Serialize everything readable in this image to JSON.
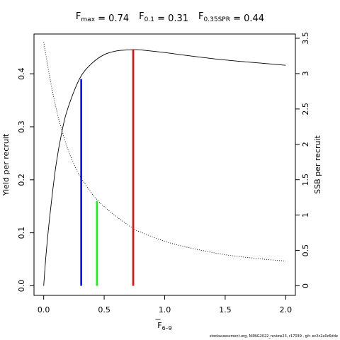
{
  "chart_data": {
    "type": "line",
    "title": {
      "parts": [
        {
          "base": "F",
          "sub": "max",
          "eq": " = 0.74"
        },
        {
          "base": "F",
          "sub": "0.1",
          "eq": " = 0.31"
        },
        {
          "base": "F",
          "sub": "0.35SPR",
          "eq": " = 0.44"
        }
      ]
    },
    "xlabel": {
      "base": "F",
      "sub": "6–9",
      "overbar": true
    },
    "ylabel_left": "Yield per recruit",
    "ylabel_right": "SSB per recruit",
    "xlim": [
      -0.08,
      2.08
    ],
    "ylim_left": [
      -0.018,
      0.475
    ],
    "ylim_right": [
      -0.135,
      3.56
    ],
    "x_ticks": [
      0.0,
      0.5,
      1.0,
      1.5,
      2.0
    ],
    "x_tick_labels": [
      "0.0",
      "0.5",
      "1.0",
      "1.5",
      "2.0"
    ],
    "y_left_ticks": [
      0.0,
      0.1,
      0.2,
      0.3,
      0.4
    ],
    "y_left_tick_labels": [
      "0.0",
      "0.1",
      "0.2",
      "0.3",
      "0.4"
    ],
    "y_right_ticks": [
      0,
      0.5,
      1,
      1.5,
      2,
      2.5,
      3,
      3.5
    ],
    "y_right_tick_labels": [
      "0",
      "0.5",
      "1",
      "1.5",
      "2",
      "2.5",
      "3",
      "3.5"
    ],
    "series": [
      {
        "axis": "left",
        "style": "solid",
        "color": "#000000",
        "x": [
          0.0,
          0.02,
          0.05,
          0.1,
          0.15,
          0.2,
          0.3,
          0.4,
          0.5,
          0.6,
          0.7,
          0.74,
          0.8,
          1.0,
          1.2,
          1.5,
          1.8,
          2.0
        ],
        "y": [
          0.0,
          0.06,
          0.13,
          0.225,
          0.29,
          0.335,
          0.392,
          0.42,
          0.436,
          0.443,
          0.445,
          0.4455,
          0.445,
          0.44,
          0.434,
          0.426,
          0.42,
          0.416
        ]
      },
      {
        "axis": "right",
        "style": "dotted",
        "color": "#000000",
        "x": [
          0.0,
          0.05,
          0.1,
          0.15,
          0.2,
          0.25,
          0.3,
          0.4,
          0.44,
          0.5,
          0.6,
          0.74,
          0.8,
          1.0,
          1.2,
          1.5,
          1.8,
          2.0
        ],
        "y": [
          3.45,
          2.95,
          2.53,
          2.2,
          1.93,
          1.72,
          1.55,
          1.3,
          1.22,
          1.12,
          0.98,
          0.81,
          0.76,
          0.63,
          0.54,
          0.44,
          0.38,
          0.35
        ]
      }
    ],
    "reference_lines": [
      {
        "label": "F0.1",
        "x": 0.31,
        "y_left": 0.39,
        "color": "#0000ff"
      },
      {
        "label": "F0.35SPR",
        "x": 0.44,
        "y_left": 0.16,
        "color": "#00ff00"
      },
      {
        "label": "Fmax",
        "x": 0.74,
        "y_left": 0.4455,
        "color": "#ff0000"
      }
    ],
    "grid": false,
    "legend": "none"
  },
  "footer": "stockassessment.org, NIPAG2022_review23, r17039 , git: ec2c2a0c6dde"
}
